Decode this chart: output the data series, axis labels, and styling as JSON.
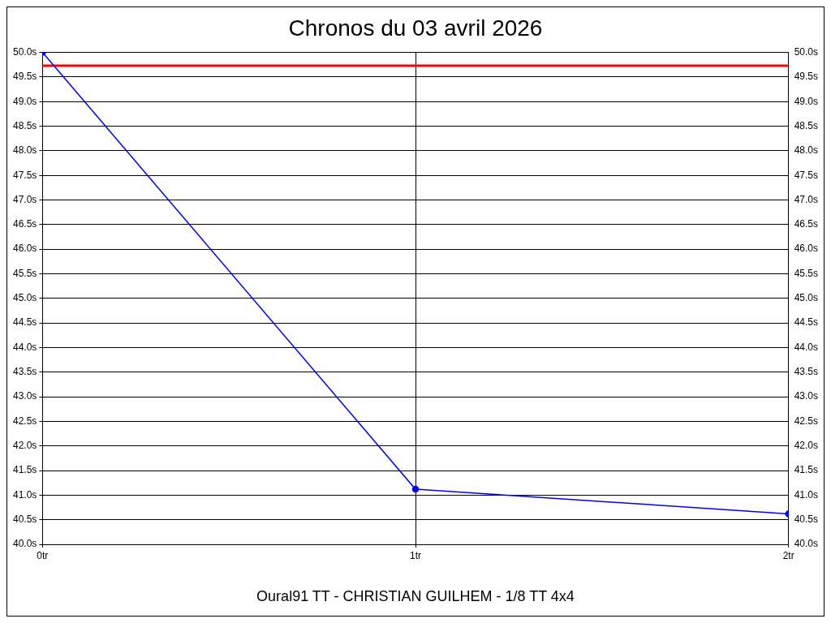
{
  "chart_data": {
    "type": "line",
    "title": "Chronos du 03 avril 2026",
    "xlabel": "Oural91 TT - CHRISTIAN GUILHEM - 1/8 TT 4x4",
    "x": [
      0,
      1,
      2
    ],
    "series": [
      {
        "color": "#0000ff",
        "values": [
          50.0,
          41.12,
          40.62
        ]
      }
    ],
    "xlim": [
      0,
      2
    ],
    "xticks": [
      {
        "value": 0,
        "label": "0tr"
      },
      {
        "value": 1,
        "label": "1tr"
      },
      {
        "value": 2,
        "label": "2tr"
      }
    ],
    "ylim": [
      40,
      50
    ],
    "yticks": [
      {
        "value": 40,
        "label": "40.0s"
      },
      {
        "value": 40.5,
        "label": "40.5s"
      },
      {
        "value": 41,
        "label": "41.0s"
      },
      {
        "value": 41.5,
        "label": "41.5s"
      },
      {
        "value": 42,
        "label": "42.0s"
      },
      {
        "value": 42.5,
        "label": "42.5s"
      },
      {
        "value": 43,
        "label": "43.0s"
      },
      {
        "value": 43.5,
        "label": "43.5s"
      },
      {
        "value": 44,
        "label": "44.0s"
      },
      {
        "value": 44.5,
        "label": "44.5s"
      },
      {
        "value": 45,
        "label": "45.0s"
      },
      {
        "value": 45.5,
        "label": "45.5s"
      },
      {
        "value": 46,
        "label": "46.0s"
      },
      {
        "value": 46.5,
        "label": "46.5s"
      },
      {
        "value": 47,
        "label": "47.0s"
      },
      {
        "value": 47.5,
        "label": "47.5s"
      },
      {
        "value": 48,
        "label": "48.0s"
      },
      {
        "value": 48.5,
        "label": "48.5s"
      },
      {
        "value": 49,
        "label": "49.0s"
      },
      {
        "value": 49.5,
        "label": "49.5s"
      },
      {
        "value": 50,
        "label": "50.0s"
      }
    ],
    "y2lim": [
      40,
      50
    ],
    "y2ticks": [
      {
        "value": 40,
        "label": "40.0s"
      },
      {
        "value": 40.5,
        "label": "40.5s"
      },
      {
        "value": 41,
        "label": "41.0s"
      },
      {
        "value": 41.5,
        "label": "41.5s"
      },
      {
        "value": 42,
        "label": "42.0s"
      },
      {
        "value": 42.5,
        "label": "42.5s"
      },
      {
        "value": 43,
        "label": "43.0s"
      },
      {
        "value": 43.5,
        "label": "43.5s"
      },
      {
        "value": 44,
        "label": "44.0s"
      },
      {
        "value": 44.5,
        "label": "44.5s"
      },
      {
        "value": 45,
        "label": "45.0s"
      },
      {
        "value": 45.5,
        "label": "45.5s"
      },
      {
        "value": 46,
        "label": "46.0s"
      },
      {
        "value": 46.5,
        "label": "46.5s"
      },
      {
        "value": 47,
        "label": "47.0s"
      },
      {
        "value": 47.5,
        "label": "47.5s"
      },
      {
        "value": 48,
        "label": "48.0s"
      },
      {
        "value": 48.5,
        "label": "48.5s"
      },
      {
        "value": 49,
        "label": "49.0s"
      },
      {
        "value": 49.5,
        "label": "49.5s"
      },
      {
        "value": 50,
        "label": "50.0s"
      }
    ],
    "ref_lines": [
      {
        "axis": "y",
        "value": 49.73,
        "color": "#ff0000"
      }
    ],
    "grid": true,
    "marker": "circle",
    "line_style": "solid",
    "legend": false
  }
}
